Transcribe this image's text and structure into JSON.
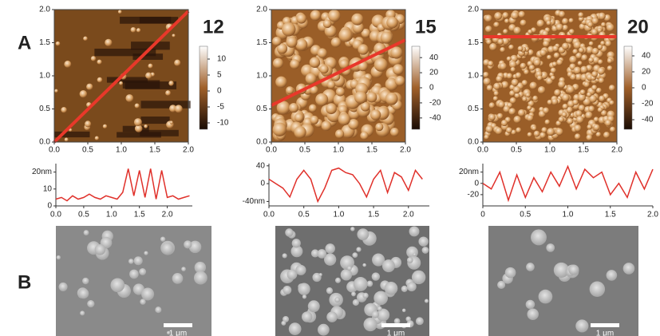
{
  "panel_a": {
    "label": "A",
    "images": [
      {
        "title": "12",
        "xticks": [
          {
            "value": 0,
            "label": "0.0"
          },
          0.5,
          {
            "value": 1,
            "label": "1.0"
          },
          1.5,
          {
            "value": 2,
            "label": "2.0"
          }
        ],
        "yticks": [
          {
            "value": 0,
            "label": "0.0"
          },
          0.5,
          {
            "value": 1,
            "label": "1.0"
          },
          1.5,
          {
            "value": 2,
            "label": "2.0"
          }
        ],
        "colorbar_lim": [
          -12,
          14
        ],
        "colorbar_ticks": [
          10,
          5,
          0,
          -5,
          -10
        ]
      },
      {
        "title": "15",
        "xticks": [
          {
            "value": 0,
            "label": "0.0"
          },
          0.5,
          {
            "value": 1,
            "label": "1.0"
          },
          1.5,
          {
            "value": 2,
            "label": "2.0"
          }
        ],
        "yticks": [
          {
            "value": 0,
            "label": "0.0"
          },
          0.5,
          {
            "value": 1,
            "label": "1.0"
          },
          1.5,
          {
            "value": 2,
            "label": "2.0"
          }
        ],
        "colorbar_lim": [
          -55,
          55
        ],
        "colorbar_ticks": [
          40,
          20,
          0,
          -20,
          -40
        ]
      },
      {
        "title": "20",
        "xticks": [
          {
            "value": 0,
            "label": "0.0"
          },
          0.5,
          {
            "value": 1,
            "label": "1.0"
          },
          1.5,
          {
            "value": 2,
            "label": "2.0"
          }
        ],
        "yticks": [
          {
            "value": 0,
            "label": "0.0"
          },
          0.5,
          {
            "value": 1,
            "label": "1.0"
          },
          1.5,
          {
            "value": 2,
            "label": "2.0"
          }
        ],
        "colorbar_lim": [
          -52,
          52
        ],
        "colorbar_ticks": [
          40,
          20,
          0,
          -20,
          -40
        ]
      }
    ],
    "profiles": [
      {
        "xlim": [
          0,
          2.45
        ],
        "ylim": [
          0,
          25
        ],
        "xticks": [
          {
            "value": 0,
            "label": "0.0"
          },
          0.5,
          {
            "value": 1,
            "label": "1.0"
          },
          1.5,
          {
            "value": 2,
            "label": "2.0"
          }
        ],
        "yticks": [
          {
            "value": 20,
            "label": "20nm"
          },
          10,
          0
        ],
        "x": [
          0,
          0.1,
          0.2,
          0.3,
          0.4,
          0.5,
          0.6,
          0.7,
          0.8,
          0.9,
          1.0,
          1.1,
          1.2,
          1.3,
          1.4,
          1.5,
          1.6,
          1.7,
          1.8,
          1.9,
          2.0,
          2.1,
          2.2,
          2.3,
          2.4
        ],
        "y": [
          4,
          5,
          3,
          6,
          4,
          5,
          7,
          5,
          4,
          6,
          5,
          4,
          8,
          22,
          6,
          21,
          5,
          22,
          4,
          21,
          5,
          6,
          4,
          5,
          6
        ]
      },
      {
        "xlim": [
          0,
          2.3
        ],
        "ylim": [
          -50,
          45
        ],
        "xticks": [
          {
            "value": 0,
            "label": "0.0"
          },
          0.5,
          {
            "value": 1,
            "label": "1.0"
          },
          1.5,
          {
            "value": 2,
            "label": "2.0"
          }
        ],
        "yticks": [
          40,
          0,
          {
            "value": -40,
            "label": "-40nm"
          }
        ],
        "x": [
          0,
          0.1,
          0.2,
          0.3,
          0.4,
          0.5,
          0.6,
          0.7,
          0.8,
          0.9,
          1.0,
          1.1,
          1.2,
          1.3,
          1.4,
          1.5,
          1.6,
          1.7,
          1.8,
          1.9,
          2.0,
          2.1,
          2.2
        ],
        "y": [
          10,
          0,
          -10,
          -30,
          10,
          30,
          10,
          -40,
          -10,
          30,
          35,
          25,
          20,
          0,
          -30,
          10,
          30,
          -20,
          25,
          15,
          -15,
          30,
          10
        ]
      },
      {
        "xlim": [
          0,
          2.0
        ],
        "ylim": [
          -40,
          35
        ],
        "xticks": [
          0,
          0.5,
          {
            "value": 1,
            "label": "1.0"
          },
          1.5,
          {
            "value": 2,
            "label": "2.0"
          }
        ],
        "yticks": [
          {
            "value": 20,
            "label": "20nm"
          },
          0,
          -20
        ],
        "x": [
          0,
          0.1,
          0.2,
          0.3,
          0.4,
          0.5,
          0.6,
          0.7,
          0.8,
          0.9,
          1.0,
          1.1,
          1.2,
          1.3,
          1.4,
          1.5,
          1.6,
          1.7,
          1.8,
          1.9,
          2.0
        ],
        "y": [
          0,
          -10,
          20,
          -30,
          15,
          -25,
          10,
          -15,
          20,
          -5,
          30,
          -10,
          25,
          10,
          20,
          -20,
          0,
          -25,
          20,
          -10,
          25
        ]
      }
    ]
  },
  "panel_b": {
    "label": "B",
    "scale_bars": [
      "1 μm",
      "1 μm",
      "1 μm"
    ]
  }
}
